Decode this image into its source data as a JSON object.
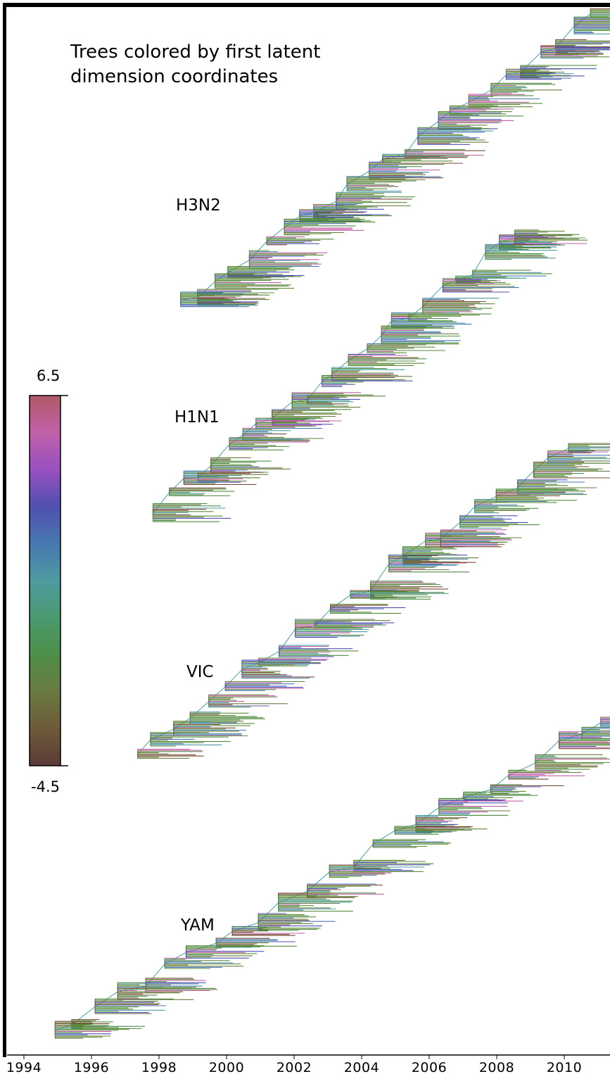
{
  "title_lines": [
    "Trees colored by first latent",
    "dimension coordinates"
  ],
  "trees": [
    {
      "label": "H3N2",
      "root_year": 1994.7,
      "start_year": 1998.6,
      "end_year": 2012.0
    },
    {
      "label": "H1N1",
      "root_year": 1996.0,
      "start_year": 1997.8,
      "end_year": 2009.8
    },
    {
      "label": "VIC",
      "root_year": 1995.2,
      "start_year": 1997.3,
      "end_year": 2011.4
    },
    {
      "label": "YAM",
      "root_year": 1994.5,
      "start_year": 1994.8,
      "end_year": 2012.4
    }
  ],
  "colorbar": {
    "max_label": "6.5",
    "min_label": "-4.5",
    "stops": [
      "#b05a67",
      "#c060a8",
      "#9850c0",
      "#5050b0",
      "#4878b0",
      "#4e9aa0",
      "#4a9a70",
      "#4e8e48",
      "#6a7a40",
      "#6e5a3a",
      "#5a3a38"
    ]
  },
  "branch_colors": [
    "#5a8a3a",
    "#4e8e48",
    "#5a8a3a",
    "#6a7a40",
    "#4878b0",
    "#5050b0",
    "#c060a8",
    "#4e9aa0",
    "#7a4a38"
  ],
  "x_axis": {
    "ticks": [
      "1994",
      "1996",
      "1998",
      "2000",
      "2002",
      "2004",
      "2006",
      "2008",
      "2010",
      "2012"
    ],
    "range": [
      1994,
      2012.5
    ]
  }
}
